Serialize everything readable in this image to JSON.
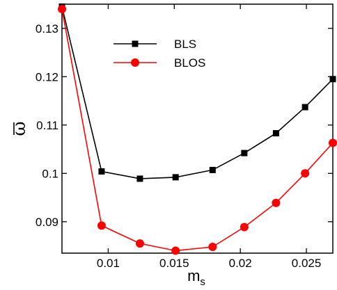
{
  "chart_data": {
    "type": "line",
    "title": "",
    "xlabel": "m",
    "xlabel_subscript": "s",
    "ylabel": "ω",
    "xlim": [
      0.0065,
      0.027
    ],
    "ylim": [
      0.0835,
      0.135
    ],
    "xticks": [
      {
        "value": 0.01,
        "label": "0.01"
      },
      {
        "value": 0.015,
        "label": "0.015"
      },
      {
        "value": 0.02,
        "label": "0.02"
      },
      {
        "value": 0.025,
        "label": "0.025"
      }
    ],
    "yticks": [
      {
        "value": 0.09,
        "label": "0.09"
      },
      {
        "value": 0.1,
        "label": "0.1"
      },
      {
        "value": 0.11,
        "label": "0.11"
      },
      {
        "value": 0.12,
        "label": "0.12"
      },
      {
        "value": 0.13,
        "label": "0.13"
      }
    ],
    "grid": false,
    "legend_position": "top-center",
    "series": [
      {
        "name": "BLS",
        "color": "#000000",
        "marker": "square",
        "x": [
          0.0065,
          0.0095,
          0.0124,
          0.0151,
          0.0179,
          0.0203,
          0.0227,
          0.0249,
          0.027
        ],
        "y": [
          0.1345,
          0.1004,
          0.0989,
          0.0992,
          0.1007,
          0.1042,
          0.1083,
          0.1137,
          0.1195
        ]
      },
      {
        "name": "BLOS",
        "color": "#ff0000",
        "marker": "circle",
        "x": [
          0.0065,
          0.0095,
          0.0124,
          0.0151,
          0.0179,
          0.0203,
          0.0227,
          0.0249,
          0.027
        ],
        "y": [
          0.134,
          0.0892,
          0.0855,
          0.084,
          0.0848,
          0.0889,
          0.0939,
          0.1,
          0.1063
        ]
      }
    ]
  }
}
